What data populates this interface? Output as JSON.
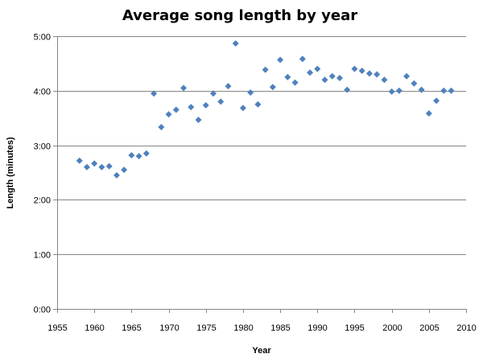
{
  "chart_data": {
    "type": "scatter",
    "title": "Average song length by year",
    "xlabel": "Year",
    "ylabel": "Length (minutes)",
    "xlim": [
      1955,
      2010
    ],
    "ylim": [
      0,
      300
    ],
    "x_ticks": [
      1955,
      1960,
      1965,
      1970,
      1975,
      1980,
      1985,
      1990,
      1995,
      2000,
      2005,
      2010
    ],
    "y_ticks": [
      0,
      60,
      120,
      180,
      240,
      300
    ],
    "y_tick_labels": [
      "0:00",
      "1:00",
      "2:00",
      "3:00",
      "4:00",
      "5:00"
    ],
    "grid": "horizontal",
    "marker": "diamond",
    "series": [
      {
        "color": "#4F81BD",
        "points": [
          [
            1958,
            163
          ],
          [
            1959,
            156
          ],
          [
            1960,
            160
          ],
          [
            1961,
            156
          ],
          [
            1962,
            157
          ],
          [
            1963,
            147
          ],
          [
            1964,
            153
          ],
          [
            1965,
            169
          ],
          [
            1966,
            168
          ],
          [
            1967,
            171
          ],
          [
            1968,
            237
          ],
          [
            1969,
            200
          ],
          [
            1970,
            214
          ],
          [
            1971,
            219
          ],
          [
            1972,
            243
          ],
          [
            1973,
            222
          ],
          [
            1974,
            208
          ],
          [
            1975,
            224
          ],
          [
            1976,
            237
          ],
          [
            1977,
            228
          ],
          [
            1978,
            245
          ],
          [
            1979,
            292
          ],
          [
            1980,
            221
          ],
          [
            1981,
            238
          ],
          [
            1982,
            225
          ],
          [
            1983,
            263
          ],
          [
            1984,
            244
          ],
          [
            1985,
            274
          ],
          [
            1986,
            255
          ],
          [
            1987,
            249
          ],
          [
            1988,
            275
          ],
          [
            1989,
            260
          ],
          [
            1990,
            264
          ],
          [
            1991,
            252
          ],
          [
            1992,
            256
          ],
          [
            1993,
            254
          ],
          [
            1994,
            241
          ],
          [
            1995,
            264
          ],
          [
            1996,
            262
          ],
          [
            1997,
            259
          ],
          [
            1998,
            258
          ],
          [
            1999,
            252
          ],
          [
            2000,
            239
          ],
          [
            2001,
            240
          ],
          [
            2002,
            256
          ],
          [
            2003,
            248
          ],
          [
            2004,
            241
          ],
          [
            2005,
            215
          ],
          [
            2006,
            229
          ],
          [
            2007,
            240
          ],
          [
            2008,
            240
          ]
        ]
      }
    ]
  }
}
